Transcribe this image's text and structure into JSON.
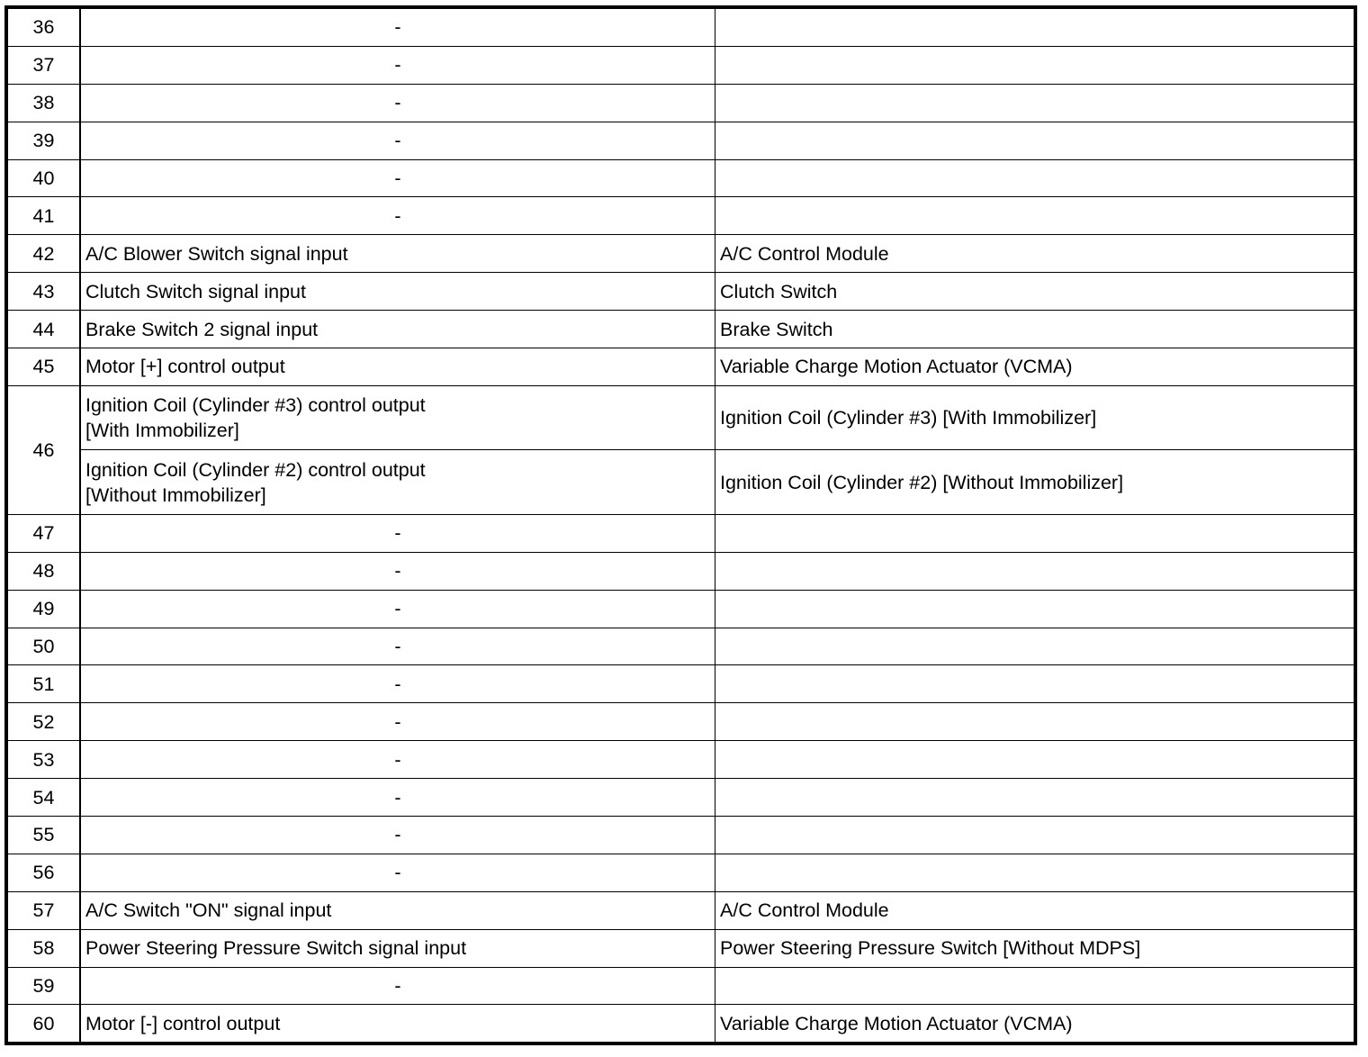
{
  "rows": [
    {
      "pin": "36",
      "entries": [
        {
          "function": "-",
          "connected_to": ""
        }
      ]
    },
    {
      "pin": "37",
      "entries": [
        {
          "function": "-",
          "connected_to": ""
        }
      ]
    },
    {
      "pin": "38",
      "entries": [
        {
          "function": "-",
          "connected_to": ""
        }
      ]
    },
    {
      "pin": "39",
      "entries": [
        {
          "function": "-",
          "connected_to": ""
        }
      ]
    },
    {
      "pin": "40",
      "entries": [
        {
          "function": "-",
          "connected_to": ""
        }
      ]
    },
    {
      "pin": "41",
      "entries": [
        {
          "function": "-",
          "connected_to": ""
        }
      ]
    },
    {
      "pin": "42",
      "entries": [
        {
          "function": "A/C Blower Switch signal input",
          "connected_to": "A/C Control Module"
        }
      ]
    },
    {
      "pin": "43",
      "entries": [
        {
          "function": "Clutch Switch signal input",
          "connected_to": "Clutch Switch"
        }
      ]
    },
    {
      "pin": "44",
      "entries": [
        {
          "function": "Brake Switch 2 signal input",
          "connected_to": "Brake Switch"
        }
      ]
    },
    {
      "pin": "45",
      "entries": [
        {
          "function": "Motor [+] control output",
          "connected_to": "Variable Charge Motion Actuator (VCMA)"
        }
      ]
    },
    {
      "pin": "46",
      "entries": [
        {
          "function": "Ignition Coil (Cylinder #3) control output",
          "function_note": "[With Immobilizer]",
          "connected_to": "Ignition Coil (Cylinder #3) [With Immobilizer]"
        },
        {
          "function": "Ignition Coil (Cylinder #2) control output",
          "function_note": "[Without Immobilizer]",
          "connected_to": "Ignition Coil (Cylinder #2) [Without Immobilizer]"
        }
      ]
    },
    {
      "pin": "47",
      "entries": [
        {
          "function": "-",
          "connected_to": ""
        }
      ]
    },
    {
      "pin": "48",
      "entries": [
        {
          "function": "-",
          "connected_to": ""
        }
      ]
    },
    {
      "pin": "49",
      "entries": [
        {
          "function": "-",
          "connected_to": ""
        }
      ]
    },
    {
      "pin": "50",
      "entries": [
        {
          "function": "-",
          "connected_to": ""
        }
      ]
    },
    {
      "pin": "51",
      "entries": [
        {
          "function": "-",
          "connected_to": ""
        }
      ]
    },
    {
      "pin": "52",
      "entries": [
        {
          "function": "-",
          "connected_to": ""
        }
      ]
    },
    {
      "pin": "53",
      "entries": [
        {
          "function": "-",
          "connected_to": ""
        }
      ]
    },
    {
      "pin": "54",
      "entries": [
        {
          "function": "-",
          "connected_to": ""
        }
      ]
    },
    {
      "pin": "55",
      "entries": [
        {
          "function": "-",
          "connected_to": ""
        }
      ]
    },
    {
      "pin": "56",
      "entries": [
        {
          "function": "-",
          "connected_to": ""
        }
      ]
    },
    {
      "pin": "57",
      "entries": [
        {
          "function": "A/C Switch \"ON\" signal input",
          "connected_to": "A/C Control Module"
        }
      ]
    },
    {
      "pin": "58",
      "entries": [
        {
          "function": "Power Steering Pressure Switch signal input",
          "connected_to": "Power Steering Pressure Switch [Without MDPS]"
        }
      ]
    },
    {
      "pin": "59",
      "entries": [
        {
          "function": "-",
          "connected_to": ""
        }
      ]
    },
    {
      "pin": "60",
      "entries": [
        {
          "function": "Motor [-] control output",
          "connected_to": "Variable Charge Motion Actuator (VCMA)"
        }
      ]
    }
  ]
}
